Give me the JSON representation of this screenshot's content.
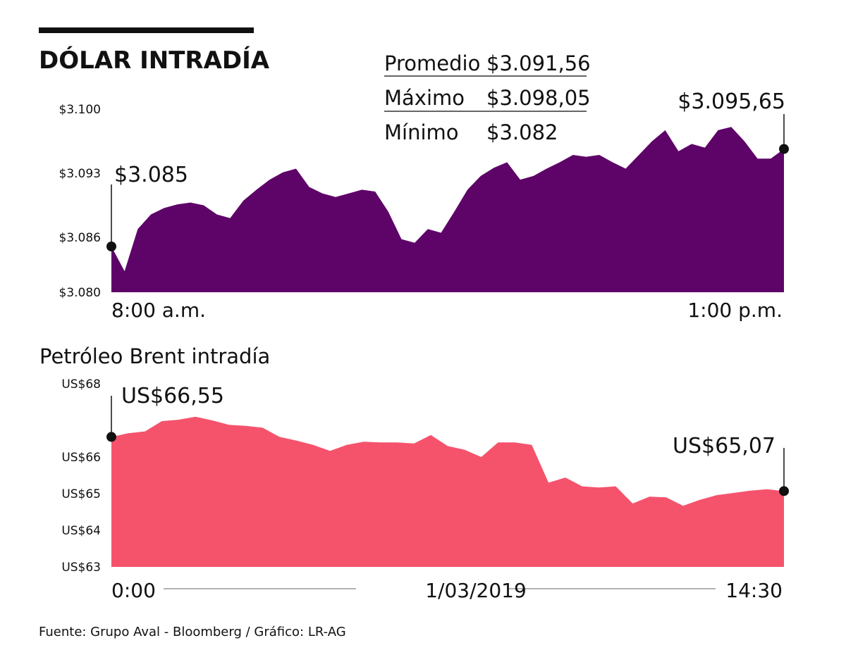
{
  "title": "DÓLAR INTRADÍA",
  "stats": [
    [
      "Promedio",
      "$3.091,56"
    ],
    [
      "Máximo",
      "$3.098,05"
    ],
    [
      "Mínimo",
      "$3.082"
    ]
  ],
  "source": "Fuente: Grupo Aval - Bloomberg / Gráfico: LR-AG",
  "chart_data": [
    {
      "type": "area",
      "color": "#5e0468",
      "ylim": [
        3080,
        3100
      ],
      "yticks": [
        {
          "value": 3100,
          "label": "$3.100"
        },
        {
          "value": 3093,
          "label": "$3.093"
        },
        {
          "value": 3086,
          "label": "$3.086"
        },
        {
          "value": 3080,
          "label": "$3.080"
        }
      ],
      "x_labels": [
        "8:00 a.m.",
        "1:00 p.m."
      ],
      "values": [
        3085,
        3082.3,
        3086.9,
        3088.5,
        3089.2,
        3089.6,
        3089.8,
        3089.5,
        3088.5,
        3088.1,
        3090,
        3091.2,
        3092.3,
        3093.1,
        3093.5,
        3091.5,
        3090.8,
        3090.4,
        3090.8,
        3091.2,
        3091,
        3088.8,
        3085.8,
        3085.4,
        3086.9,
        3086.5,
        3088.8,
        3091.2,
        3092.7,
        3093.6,
        3094.2,
        3092.3,
        3092.7,
        3093.5,
        3094.2,
        3095,
        3094.8,
        3095,
        3094.2,
        3093.5,
        3095,
        3096.5,
        3097.7,
        3095.4,
        3096.2,
        3095.8,
        3097.7,
        3098.05,
        3096.5,
        3094.6,
        3094.6,
        3095.65
      ],
      "value_labels": [
        "$3.085",
        null,
        null,
        null,
        null,
        null,
        null,
        null,
        null,
        null,
        null,
        null,
        null,
        null,
        null,
        null,
        null,
        null,
        null,
        null,
        null,
        null,
        null,
        null,
        null,
        null,
        null,
        null,
        null,
        null,
        null,
        null,
        null,
        null,
        null,
        null,
        null,
        null,
        null,
        null,
        null,
        null,
        null,
        null,
        null,
        null,
        null,
        null,
        null,
        null,
        null,
        "$3.095,65"
      ]
    },
    {
      "type": "area",
      "title": "Petróleo Brent intradía",
      "color": "#f5536c",
      "ylim": [
        63,
        68
      ],
      "yticks": [
        {
          "value": 68,
          "label": "US$68"
        },
        {
          "value": 66,
          "label": "US$66"
        },
        {
          "value": 65,
          "label": "US$65"
        },
        {
          "value": 64,
          "label": "US$64"
        },
        {
          "value": 63,
          "label": "US$63"
        }
      ],
      "x_labels": [
        "0:00",
        "1/03/2019",
        "14:30"
      ],
      "values": [
        66.55,
        66.65,
        66.7,
        66.98,
        67.02,
        67.1,
        67.0,
        66.88,
        66.85,
        66.8,
        66.55,
        66.45,
        66.33,
        66.17,
        66.33,
        66.42,
        66.4,
        66.4,
        66.37,
        66.6,
        66.3,
        66.2,
        66.0,
        66.4,
        66.4,
        66.33,
        65.3,
        65.44,
        65.2,
        65.17,
        65.2,
        64.73,
        64.92,
        64.9,
        64.67,
        64.83,
        64.96,
        65.02,
        65.08,
        65.12,
        65.07
      ],
      "value_labels": [
        "US$66,55",
        null,
        null,
        null,
        null,
        null,
        null,
        null,
        null,
        null,
        null,
        null,
        null,
        null,
        null,
        null,
        null,
        null,
        null,
        null,
        null,
        null,
        null,
        null,
        null,
        null,
        null,
        null,
        null,
        null,
        null,
        null,
        null,
        null,
        null,
        null,
        null,
        null,
        null,
        null,
        "US$65,07"
      ]
    }
  ]
}
